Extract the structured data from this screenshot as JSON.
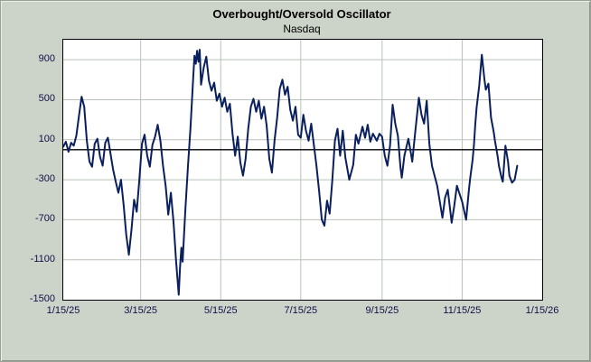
{
  "chart_data": {
    "type": "line",
    "title": "Overbought/Oversold Oscillator",
    "subtitle": "Nasdaq",
    "legend": "none",
    "grid": true,
    "ylim": [
      -1500,
      1100
    ],
    "yticks": [
      900,
      500,
      100,
      -300,
      -700,
      -1100,
      -1500
    ],
    "xlim_days": [
      0,
      365
    ],
    "xticks": [
      {
        "day": 0,
        "label": "1/15/25"
      },
      {
        "day": 59,
        "label": "3/15/25"
      },
      {
        "day": 120,
        "label": "5/15/25"
      },
      {
        "day": 181,
        "label": "7/15/25"
      },
      {
        "day": 243,
        "label": "9/15/25"
      },
      {
        "day": 304,
        "label": "11/15/25"
      },
      {
        "day": 365,
        "label": "1/15/26"
      }
    ],
    "zero_line_value": 0,
    "colors": {
      "background": "#ccd3c8",
      "plot_background": "#ffffff",
      "series_line": "#0a1f5e",
      "grid_line": "#b9c2b9",
      "zero_line": "#000000",
      "tick_text": "#10104a",
      "title_text": "#000000"
    },
    "points": [
      [
        0,
        30
      ],
      [
        2,
        80
      ],
      [
        4,
        -20
      ],
      [
        6,
        70
      ],
      [
        8,
        40
      ],
      [
        10,
        140
      ],
      [
        12,
        340
      ],
      [
        14,
        530
      ],
      [
        16,
        430
      ],
      [
        18,
        90
      ],
      [
        20,
        -120
      ],
      [
        22,
        -170
      ],
      [
        24,
        60
      ],
      [
        26,
        110
      ],
      [
        28,
        -70
      ],
      [
        30,
        -160
      ],
      [
        32,
        70
      ],
      [
        34,
        120
      ],
      [
        36,
        -40
      ],
      [
        38,
        -200
      ],
      [
        40,
        -320
      ],
      [
        42,
        -430
      ],
      [
        44,
        -300
      ],
      [
        46,
        -550
      ],
      [
        48,
        -850
      ],
      [
        50,
        -1050
      ],
      [
        52,
        -800
      ],
      [
        54,
        -500
      ],
      [
        56,
        -620
      ],
      [
        58,
        -300
      ],
      [
        60,
        60
      ],
      [
        62,
        150
      ],
      [
        64,
        -60
      ],
      [
        66,
        -170
      ],
      [
        68,
        50
      ],
      [
        70,
        130
      ],
      [
        72,
        250
      ],
      [
        74,
        90
      ],
      [
        76,
        -160
      ],
      [
        78,
        -360
      ],
      [
        80,
        -650
      ],
      [
        82,
        -430
      ],
      [
        84,
        -720
      ],
      [
        86,
        -1120
      ],
      [
        88,
        -1450
      ],
      [
        89,
        -1180
      ],
      [
        90,
        -980
      ],
      [
        91,
        -1120
      ],
      [
        93,
        -620
      ],
      [
        95,
        -180
      ],
      [
        97,
        220
      ],
      [
        99,
        720
      ],
      [
        100,
        940
      ],
      [
        101,
        860
      ],
      [
        102,
        990
      ],
      [
        103,
        880
      ],
      [
        104,
        1000
      ],
      [
        105,
        650
      ],
      [
        107,
        820
      ],
      [
        109,
        930
      ],
      [
        111,
        690
      ],
      [
        113,
        590
      ],
      [
        115,
        670
      ],
      [
        117,
        490
      ],
      [
        119,
        560
      ],
      [
        121,
        430
      ],
      [
        123,
        520
      ],
      [
        125,
        380
      ],
      [
        127,
        460
      ],
      [
        129,
        160
      ],
      [
        131,
        -60
      ],
      [
        133,
        130
      ],
      [
        135,
        -130
      ],
      [
        137,
        -260
      ],
      [
        139,
        -90
      ],
      [
        141,
        210
      ],
      [
        143,
        430
      ],
      [
        145,
        510
      ],
      [
        147,
        380
      ],
      [
        149,
        490
      ],
      [
        151,
        310
      ],
      [
        153,
        430
      ],
      [
        155,
        240
      ],
      [
        157,
        -90
      ],
      [
        159,
        -230
      ],
      [
        161,
        90
      ],
      [
        163,
        320
      ],
      [
        165,
        610
      ],
      [
        167,
        700
      ],
      [
        169,
        550
      ],
      [
        171,
        630
      ],
      [
        173,
        400
      ],
      [
        175,
        290
      ],
      [
        177,
        430
      ],
      [
        179,
        150
      ],
      [
        181,
        120
      ],
      [
        183,
        350
      ],
      [
        185,
        190
      ],
      [
        187,
        90
      ],
      [
        189,
        260
      ],
      [
        191,
        50
      ],
      [
        193,
        -160
      ],
      [
        195,
        -420
      ],
      [
        197,
        -700
      ],
      [
        199,
        -760
      ],
      [
        201,
        -510
      ],
      [
        203,
        -640
      ],
      [
        205,
        -310
      ],
      [
        207,
        90
      ],
      [
        209,
        210
      ],
      [
        211,
        -60
      ],
      [
        213,
        190
      ],
      [
        215,
        -80
      ],
      [
        218,
        -300
      ],
      [
        221,
        -150
      ],
      [
        223,
        150
      ],
      [
        225,
        60
      ],
      [
        228,
        230
      ],
      [
        230,
        120
      ],
      [
        232,
        250
      ],
      [
        234,
        80
      ],
      [
        236,
        160
      ],
      [
        239,
        90
      ],
      [
        241,
        160
      ],
      [
        243,
        130
      ],
      [
        245,
        -60
      ],
      [
        247,
        -160
      ],
      [
        249,
        40
      ],
      [
        251,
        450
      ],
      [
        253,
        260
      ],
      [
        255,
        140
      ],
      [
        257,
        -180
      ],
      [
        258,
        -280
      ],
      [
        260,
        -60
      ],
      [
        263,
        110
      ],
      [
        265,
        -40
      ],
      [
        266,
        -120
      ],
      [
        268,
        150
      ],
      [
        271,
        520
      ],
      [
        273,
        350
      ],
      [
        275,
        260
      ],
      [
        277,
        490
      ],
      [
        279,
        60
      ],
      [
        281,
        -160
      ],
      [
        283,
        -260
      ],
      [
        285,
        -360
      ],
      [
        287,
        -520
      ],
      [
        289,
        -680
      ],
      [
        291,
        -480
      ],
      [
        293,
        -400
      ],
      [
        295,
        -620
      ],
      [
        296,
        -730
      ],
      [
        298,
        -560
      ],
      [
        300,
        -360
      ],
      [
        302,
        -440
      ],
      [
        304,
        -520
      ],
      [
        306,
        -640
      ],
      [
        307,
        -700
      ],
      [
        309,
        -420
      ],
      [
        310,
        -300
      ],
      [
        312,
        -100
      ],
      [
        313,
        50
      ],
      [
        314,
        250
      ],
      [
        315,
        420
      ],
      [
        317,
        640
      ],
      [
        319,
        950
      ],
      [
        321,
        700
      ],
      [
        322,
        600
      ],
      [
        324,
        660
      ],
      [
        326,
        320
      ],
      [
        328,
        180
      ],
      [
        329,
        90
      ],
      [
        331,
        -60
      ],
      [
        332,
        -160
      ],
      [
        334,
        -280
      ],
      [
        335,
        -320
      ],
      [
        337,
        40
      ],
      [
        339,
        -120
      ],
      [
        340,
        -260
      ],
      [
        342,
        -330
      ],
      [
        344,
        -300
      ],
      [
        346,
        -160
      ]
    ]
  }
}
